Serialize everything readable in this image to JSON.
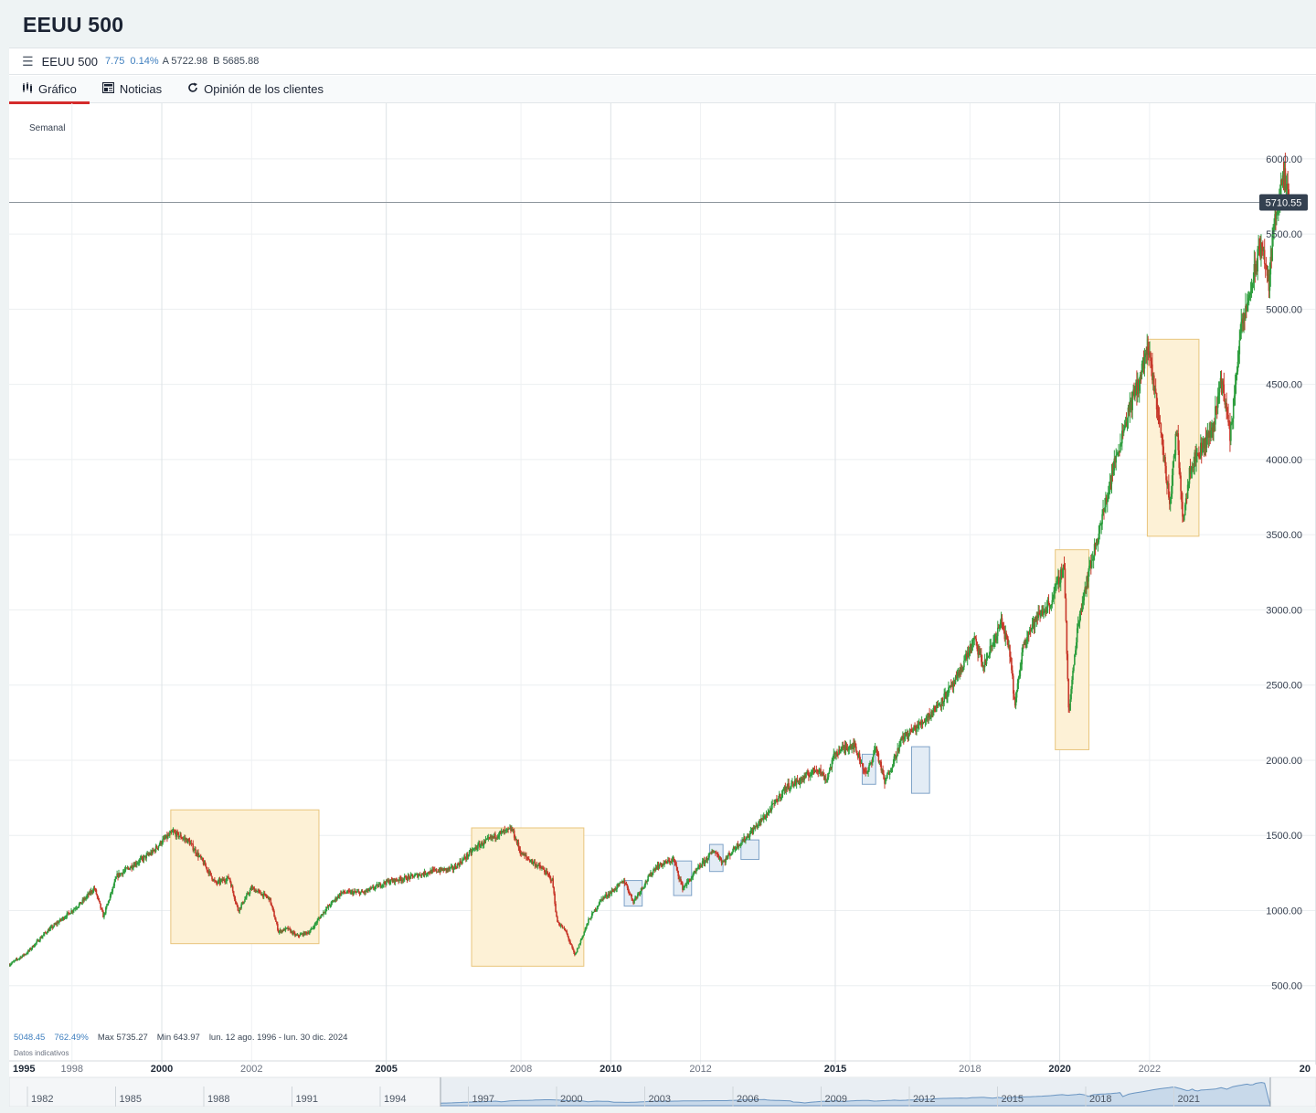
{
  "page_title": "EEUU 500",
  "quote": {
    "name": "EEUU 500",
    "change": "7.75",
    "change_pct": "0.14%",
    "ask": "A 5722.98",
    "bid": "B 5685.88"
  },
  "tabs": [
    {
      "label": "Gráfico",
      "icon": "candlestick-icon",
      "active": true
    },
    {
      "label": "Noticias",
      "icon": "newspaper-icon",
      "active": false
    },
    {
      "label": "Opinión de los clientes",
      "icon": "refresh-icon",
      "active": false
    }
  ],
  "chart_data": {
    "type": "candlestick",
    "timeframe_label": "Semanal",
    "current_price": "5710.55",
    "y_ticks": [
      "500.00",
      "1000.00",
      "1500.00",
      "2000.00",
      "2500.00",
      "3000.00",
      "3500.00",
      "4000.00",
      "4500.00",
      "5000.00",
      "5500.00",
      "6000.00"
    ],
    "y_tick_values": [
      500,
      1000,
      1500,
      2000,
      2500,
      3000,
      3500,
      4000,
      4500,
      5000,
      5500,
      6000
    ],
    "ylim": [
      0,
      6370
    ],
    "x_ticks": [
      {
        "label": "1995",
        "year": 1995.0,
        "bold": true
      },
      {
        "label": "1998",
        "year": 1998.0,
        "bold": false
      },
      {
        "label": "2000",
        "year": 2000.0,
        "bold": true
      },
      {
        "label": "2002",
        "year": 2002.0,
        "bold": false
      },
      {
        "label": "2005",
        "year": 2005.0,
        "bold": true
      },
      {
        "label": "2008",
        "year": 2008.0,
        "bold": false
      },
      {
        "label": "2010",
        "year": 2010.0,
        "bold": true
      },
      {
        "label": "2012",
        "year": 2012.0,
        "bold": false
      },
      {
        "label": "2015",
        "year": 2015.0,
        "bold": true
      },
      {
        "label": "2018",
        "year": 2018.0,
        "bold": false
      },
      {
        "label": "2020",
        "year": 2020.0,
        "bold": true
      },
      {
        "label": "2022",
        "year": 2022.0,
        "bold": false
      },
      {
        "label": "20",
        "year": 2025.7,
        "bold": true
      }
    ],
    "xlim": [
      1996.6,
      2025.3
    ],
    "price_path": [
      [
        1996.6,
        640
      ],
      [
        1997.0,
        720
      ],
      [
        1997.4,
        850
      ],
      [
        1997.8,
        950
      ],
      [
        1998.2,
        1050
      ],
      [
        1998.5,
        1150
      ],
      [
        1998.7,
        960
      ],
      [
        1999.0,
        1230
      ],
      [
        1999.5,
        1330
      ],
      [
        1999.8,
        1390
      ],
      [
        2000.0,
        1460
      ],
      [
        2000.25,
        1520
      ],
      [
        2000.6,
        1460
      ],
      [
        2000.9,
        1330
      ],
      [
        2001.2,
        1180
      ],
      [
        2001.5,
        1220
      ],
      [
        2001.7,
        1000
      ],
      [
        2002.0,
        1150
      ],
      [
        2002.4,
        1080
      ],
      [
        2002.6,
        860
      ],
      [
        2002.8,
        880
      ],
      [
        2003.0,
        830
      ],
      [
        2003.3,
        860
      ],
      [
        2003.6,
        990
      ],
      [
        2004.0,
        1120
      ],
      [
        2004.5,
        1120
      ],
      [
        2005.0,
        1190
      ],
      [
        2005.5,
        1220
      ],
      [
        2006.0,
        1260
      ],
      [
        2006.5,
        1280
      ],
      [
        2007.0,
        1420
      ],
      [
        2007.5,
        1510
      ],
      [
        2007.8,
        1540
      ],
      [
        2008.0,
        1380
      ],
      [
        2008.5,
        1270
      ],
      [
        2008.7,
        1200
      ],
      [
        2008.8,
        930
      ],
      [
        2009.0,
        860
      ],
      [
        2009.2,
        700
      ],
      [
        2009.5,
        930
      ],
      [
        2009.8,
        1080
      ],
      [
        2010.0,
        1120
      ],
      [
        2010.3,
        1200
      ],
      [
        2010.5,
        1060
      ],
      [
        2010.8,
        1200
      ],
      [
        2011.0,
        1290
      ],
      [
        2011.4,
        1340
      ],
      [
        2011.6,
        1150
      ],
      [
        2011.8,
        1220
      ],
      [
        2012.0,
        1300
      ],
      [
        2012.3,
        1400
      ],
      [
        2012.5,
        1320
      ],
      [
        2012.8,
        1430
      ],
      [
        2013.0,
        1480
      ],
      [
        2013.5,
        1650
      ],
      [
        2013.9,
        1820
      ],
      [
        2014.3,
        1880
      ],
      [
        2014.6,
        1950
      ],
      [
        2014.8,
        1870
      ],
      [
        2015.0,
        2050
      ],
      [
        2015.4,
        2110
      ],
      [
        2015.7,
        1900
      ],
      [
        2015.9,
        2090
      ],
      [
        2016.1,
        1850
      ],
      [
        2016.5,
        2150
      ],
      [
        2016.9,
        2240
      ],
      [
        2017.3,
        2370
      ],
      [
        2017.7,
        2530
      ],
      [
        2017.9,
        2680
      ],
      [
        2018.1,
        2800
      ],
      [
        2018.3,
        2620
      ],
      [
        2018.7,
        2920
      ],
      [
        2018.9,
        2700
      ],
      [
        2019.0,
        2350
      ],
      [
        2019.2,
        2800
      ],
      [
        2019.5,
        2950
      ],
      [
        2019.8,
        3050
      ],
      [
        2020.1,
        3300
      ],
      [
        2020.2,
        2300
      ],
      [
        2020.4,
        2900
      ],
      [
        2020.6,
        3200
      ],
      [
        2020.9,
        3550
      ],
      [
        2021.2,
        3950
      ],
      [
        2021.5,
        4300
      ],
      [
        2021.8,
        4550
      ],
      [
        2021.95,
        4750
      ],
      [
        2022.2,
        4300
      ],
      [
        2022.45,
        3700
      ],
      [
        2022.6,
        4200
      ],
      [
        2022.75,
        3600
      ],
      [
        2022.9,
        3950
      ],
      [
        2023.1,
        4050
      ],
      [
        2023.4,
        4200
      ],
      [
        2023.6,
        4550
      ],
      [
        2023.8,
        4150
      ],
      [
        2024.0,
        4800
      ],
      [
        2024.3,
        5200
      ],
      [
        2024.5,
        5450
      ],
      [
        2024.65,
        5150
      ],
      [
        2024.8,
        5650
      ],
      [
        2025.0,
        5870
      ],
      [
        2025.1,
        5710
      ]
    ],
    "highlight_zones": [
      {
        "kind": "yellow",
        "x0": 2000.2,
        "x1": 2003.5,
        "y0": 780,
        "y1": 1670
      },
      {
        "kind": "yellow",
        "x0": 2006.9,
        "x1": 2009.4,
        "y0": 630,
        "y1": 1550
      },
      {
        "kind": "blue",
        "x0": 2010.3,
        "x1": 2010.7,
        "y0": 1030,
        "y1": 1200
      },
      {
        "kind": "blue",
        "x0": 2011.4,
        "x1": 2011.8,
        "y0": 1100,
        "y1": 1330
      },
      {
        "kind": "blue",
        "x0": 2012.2,
        "x1": 2012.5,
        "y0": 1260,
        "y1": 1440
      },
      {
        "kind": "blue",
        "x0": 2012.9,
        "x1": 2013.3,
        "y0": 1340,
        "y1": 1470
      },
      {
        "kind": "blue",
        "x0": 2015.6,
        "x1": 2015.9,
        "y0": 1840,
        "y1": 2040
      },
      {
        "kind": "blue",
        "x0": 2016.7,
        "x1": 2017.1,
        "y0": 1780,
        "y1": 2090
      },
      {
        "kind": "yellow",
        "x0": 2019.9,
        "x1": 2020.65,
        "y0": 2070,
        "y1": 3400
      },
      {
        "kind": "yellow",
        "x0": 2021.95,
        "x1": 2023.1,
        "y0": 3490,
        "y1": 4800
      }
    ],
    "navigator": {
      "labels": [
        "1982",
        "1985",
        "1988",
        "1991",
        "1994",
        "1997",
        "2000",
        "2003",
        "2006",
        "2009",
        "2012",
        "2015",
        "2018",
        "2021"
      ]
    }
  },
  "footer": {
    "last": "5048.45",
    "change_pct": "762.49%",
    "max": "Max 5735.27",
    "min": "Min 643.97",
    "range": "lun. 12 ago. 1996 - lun. 30 dic. 2024",
    "indicative": "Datos indicativos"
  },
  "colors": {
    "up": "#2e9e3e",
    "down": "#c8392b",
    "zone_yellow_fill": "#fdf1d6",
    "zone_yellow_stroke": "#e8c57c",
    "zone_blue_fill": "#e3ecf5",
    "zone_blue_stroke": "#7fa3c8",
    "price_tag": "#344150"
  }
}
